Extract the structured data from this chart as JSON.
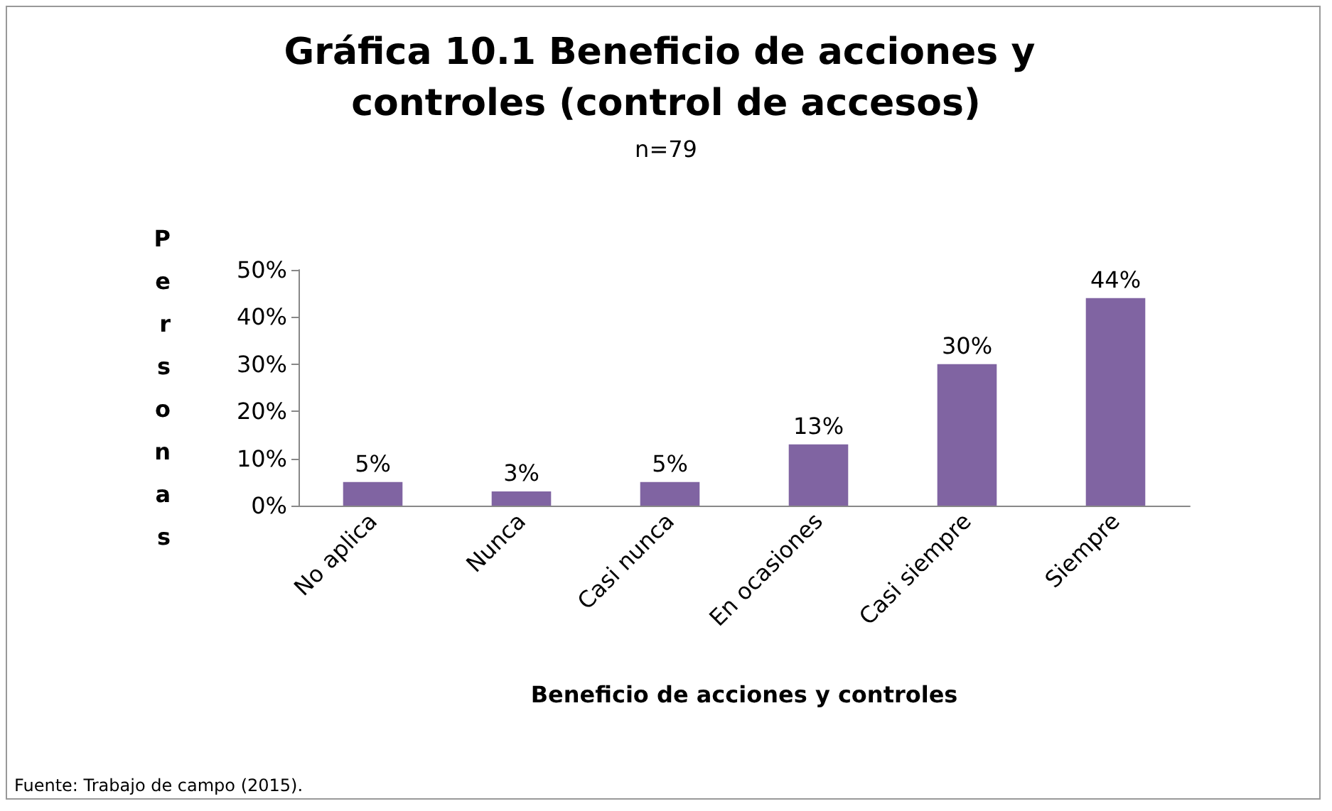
{
  "chart_data": {
    "type": "bar",
    "title": "Gráfica 10.1 Beneficio de acciones y controles (control de accesos)",
    "subtitle": "n=79",
    "xlabel": "Beneficio de acciones y controles",
    "ylabel": "Personas",
    "categories": [
      "No aplica",
      "Nunca",
      "Casi nunca",
      "En ocasiones",
      "Casi siempre",
      "Siempre"
    ],
    "values": [
      5,
      3,
      5,
      13,
      30,
      44
    ],
    "color": "#8064a2",
    "value_labels": [
      "5%",
      "3%",
      "5%",
      "13%",
      "30%",
      "44%"
    ],
    "ylim": [
      0,
      50
    ],
    "yticks": [
      {
        "value": 0,
        "label": "0%"
      },
      {
        "value": 10,
        "label": "10%"
      },
      {
        "value": 20,
        "label": "20%"
      },
      {
        "value": 30,
        "label": "30%"
      },
      {
        "value": 40,
        "label": "40%"
      },
      {
        "value": 50,
        "label": "50%"
      }
    ],
    "grid": false,
    "annotations": [
      "Fuente: Trabajo de campo (2015)."
    ]
  }
}
